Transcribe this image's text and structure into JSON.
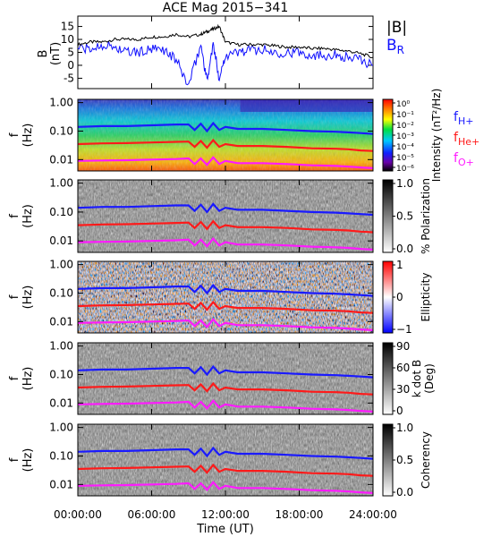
{
  "title": "ACE Mag 2015−341",
  "xlabel": "Time (UT)",
  "colors": {
    "total_field": "#000000",
    "radial_field": "#1010ff",
    "f_h": "#1a1aff",
    "f_he": "#ff1a1a",
    "f_o": "#ff1aff"
  },
  "chart_data": [
    {
      "type": "line",
      "panel": "magnetic-field",
      "ylabel": "B\n(nT)",
      "ylabel_lines": [
        "B",
        "(nT)"
      ],
      "yticks": [
        15,
        10,
        5,
        0,
        -5
      ],
      "ylim": [
        -9,
        19
      ],
      "xlim": [
        0,
        24
      ],
      "xticks": [
        "00:00:00",
        "06:00:00",
        "12:00:00",
        "18:00:00",
        "24:00:00"
      ],
      "grid": false,
      "legend_position": "right",
      "series": [
        {
          "name": "|B|",
          "x": [
            0,
            1,
            2,
            3,
            4,
            5,
            6,
            7,
            8,
            9,
            10,
            10.5,
            11,
            11.5,
            12,
            13,
            14,
            15,
            16,
            17,
            18,
            19,
            20,
            21,
            22,
            23,
            24
          ],
          "values": [
            8,
            9,
            9,
            10,
            10,
            10,
            11,
            11,
            12,
            11,
            12,
            13,
            14,
            15,
            9,
            8,
            8,
            8,
            7.5,
            7,
            7,
            6.5,
            6.5,
            6,
            5.5,
            4.5,
            3
          ]
        },
        {
          "name": "B_R",
          "x": [
            0,
            1,
            2,
            3,
            4,
            5,
            6,
            7,
            8,
            9,
            10,
            10.5,
            11,
            11.5,
            12,
            13,
            14,
            15,
            16,
            17,
            18,
            19,
            20,
            21,
            22,
            23,
            24
          ],
          "values": [
            7,
            6,
            8,
            7,
            5,
            5,
            6,
            6,
            2,
            -8,
            8,
            -6,
            8,
            -5,
            4,
            5,
            6,
            6,
            5,
            5,
            5,
            4,
            4,
            4,
            3,
            2,
            0
          ]
        }
      ]
    },
    {
      "type": "heatmap",
      "panel": "intensity",
      "ylabel_lines": [
        "f",
        "(Hz)"
      ],
      "yticks": [
        "1.00",
        "0.10",
        "0.01"
      ],
      "colorbar_label": "Intensity (nT²/Hz)",
      "colorbar_ticks": [
        "10⁰",
        "10⁻¹",
        "10⁻²",
        "10⁻³",
        "10⁻⁴",
        "10⁻⁵",
        "10⁻⁶"
      ],
      "legend": [
        "f_H+",
        "f_He+",
        "f_O+"
      ]
    },
    {
      "type": "heatmap",
      "panel": "polarization",
      "ylabel_lines": [
        "f",
        "(Hz)"
      ],
      "yticks": [
        "1.00",
        "0.10",
        "0.01"
      ],
      "colorbar_label": "% Polarization",
      "colorbar_ticks": [
        "1.0",
        "0.5",
        "0.0"
      ]
    },
    {
      "type": "heatmap",
      "panel": "ellipticity",
      "ylabel_lines": [
        "f",
        "(Hz)"
      ],
      "yticks": [
        "1.00",
        "0.10",
        "0.01"
      ],
      "colorbar_label": "Ellipticity",
      "colorbar_ticks": [
        "1",
        "0",
        "−1"
      ]
    },
    {
      "type": "heatmap",
      "panel": "wave-normal-angle",
      "ylabel_lines": [
        "f",
        "(Hz)"
      ],
      "yticks": [
        "1.00",
        "0.10",
        "0.01"
      ],
      "colorbar_label_lines": [
        "k dot B",
        "(Deg)"
      ],
      "colorbar_ticks": [
        "90",
        "60",
        "30",
        "0"
      ]
    },
    {
      "type": "heatmap",
      "panel": "coherency",
      "ylabel_lines": [
        "f",
        "(Hz)"
      ],
      "yticks": [
        "1.00",
        "0.10",
        "0.01"
      ],
      "colorbar_label": "Coherency",
      "colorbar_ticks": [
        "1.0",
        "0.5",
        "0.0"
      ]
    }
  ],
  "gyrofrequency_lines": {
    "x": [
      0,
      2,
      4,
      6,
      8,
      9,
      9.5,
      10,
      10.5,
      11,
      11.5,
      12,
      13,
      15,
      17,
      19,
      21,
      22,
      23,
      24
    ],
    "f_H": [
      0.14,
      0.15,
      0.15,
      0.16,
      0.17,
      0.17,
      0.11,
      0.18,
      0.1,
      0.19,
      0.11,
      0.14,
      0.12,
      0.12,
      0.11,
      0.1,
      0.095,
      0.09,
      0.085,
      0.08
    ],
    "f_He": [
      0.035,
      0.037,
      0.038,
      0.04,
      0.042,
      0.043,
      0.028,
      0.045,
      0.026,
      0.048,
      0.028,
      0.035,
      0.03,
      0.03,
      0.028,
      0.025,
      0.024,
      0.023,
      0.021,
      0.02
    ],
    "f_O": [
      0.009,
      0.0093,
      0.0095,
      0.01,
      0.0105,
      0.011,
      0.007,
      0.011,
      0.0065,
      0.012,
      0.007,
      0.009,
      0.0075,
      0.0075,
      0.007,
      0.0063,
      0.006,
      0.0057,
      0.0053,
      0.005
    ]
  }
}
